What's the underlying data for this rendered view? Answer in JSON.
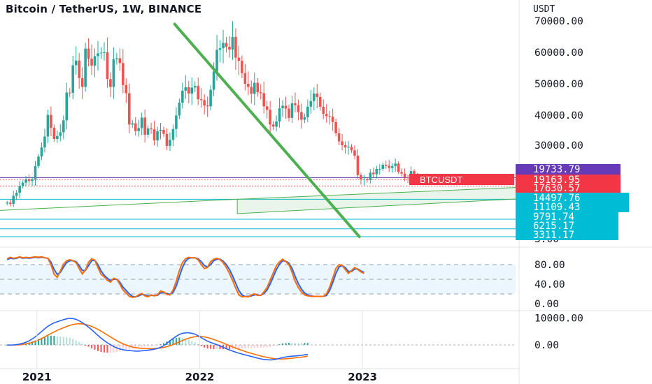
{
  "colors": {
    "up": "#26a69a",
    "down": "#ef5350",
    "trendline": "#4caf50",
    "channel": "#4caf50",
    "support": "#00bcd4",
    "resistance": "#673ab7",
    "stoch_k": "#2962ff",
    "stoch_d": "#ff6d00",
    "macd": "#2962ff",
    "signal": "#ff6d00",
    "text": "#131722",
    "axis_text": "#131722"
  },
  "chart_data": [
    {
      "type": "candlestick",
      "title": "Bitcoin / TetherUS, 1W, BINANCE",
      "ylabel": "USDT",
      "ylim": [
        3311,
        70000
      ],
      "grid": false,
      "y_ticks": [
        "70000.00",
        "60000.00",
        "50000.00",
        "40000.00",
        "30000.00",
        "3.00"
      ],
      "x_ticks": [
        "2021",
        "2022",
        "2023"
      ],
      "current_price": {
        "label": "BTCUSDT",
        "value": "19163.95"
      },
      "level_labels": [
        {
          "value": "19733.79",
          "kind": "resistance"
        },
        {
          "value": "17630.57",
          "kind": "price"
        },
        {
          "value": "14497.76",
          "kind": "support"
        },
        {
          "value": "11109.43",
          "kind": "support"
        },
        {
          "value": "9791.74",
          "kind": "support"
        },
        {
          "value": "6215.17",
          "kind": "support"
        },
        {
          "value": "3311.17",
          "kind": "support"
        }
      ],
      "trendline": {
        "from": {
          "date": "2021-11-08",
          "price": 69000
        },
        "to": {
          "date": "2022-12-26",
          "price": 3311
        }
      },
      "channel": {
        "start": "2022-03-28",
        "upper": [
          14497.76,
          17300
        ],
        "lower": [
          11109.43,
          14600
        ]
      },
      "x_range": [
        "2020-10-26",
        "2023-07-03"
      ],
      "closes": [
        13700,
        13400,
        15300,
        16000,
        17600,
        18400,
        19200,
        18800,
        19200,
        23400,
        26400,
        29300,
        32900,
        40100,
        35800,
        32100,
        33100,
        34300,
        38300,
        47200,
        47100,
        55900,
        57400,
        51800,
        49000,
        61200,
        58000,
        55800,
        58800,
        59700,
        59900,
        60000,
        51500,
        49000,
        57800,
        58100,
        56600,
        49600,
        47000,
        36900,
        37300,
        34700,
        35700,
        39200,
        33500,
        35600,
        35300,
        31600,
        34700,
        35100,
        33800,
        29800,
        31800,
        35400,
        39900,
        44000,
        47800,
        48900,
        46900,
        48800,
        49300,
        45100,
        44800,
        43100,
        42800,
        48100,
        53900,
        60800,
        61300,
        63000,
        61800,
        60900,
        64900,
        58300,
        57300,
        53400,
        50000,
        49000,
        46800,
        50300,
        47300,
        47000,
        42800,
        41700,
        36900,
        36200,
        37900,
        42200,
        43000,
        42100,
        39100,
        43800,
        43200,
        41000,
        38500,
        39300,
        42700,
        44500,
        46900,
        45800,
        42700,
        40400,
        39700,
        39500,
        37700,
        34000,
        31300,
        30000,
        29300,
        29500,
        28400,
        26700,
        20500,
        19200,
        19300,
        19000,
        21300,
        20800,
        22500,
        22500,
        23800,
        23500,
        22800,
        23400,
        24200,
        21500,
        21000,
        19800,
        19600,
        21800,
        20100,
        18900,
        19400,
        19700,
        19500,
        19200
      ]
    },
    {
      "type": "line",
      "title": "",
      "ylim": [
        0,
        100
      ],
      "y_ticks": [
        "80.00",
        "40.00",
        "0.00"
      ],
      "series": [
        {
          "name": "",
          "values": [
            92,
            95,
            93,
            94,
            96,
            94,
            95,
            94,
            95,
            96,
            95,
            96,
            94,
            93,
            80,
            60,
            54,
            67,
            81,
            88,
            90,
            88,
            84,
            72,
            61,
            69,
            85,
            92,
            89,
            74,
            60,
            55,
            48,
            44,
            52,
            50,
            40,
            28,
            22,
            15,
            13,
            14,
            18,
            21,
            16,
            14,
            18,
            16,
            18,
            26,
            24,
            19,
            18,
            28,
            46,
            68,
            84,
            92,
            95,
            94,
            94,
            90,
            80,
            72,
            74,
            86,
            91,
            93,
            90,
            84,
            74,
            62,
            48,
            32,
            18,
            14,
            15,
            14,
            18,
            20,
            17,
            17,
            24,
            33,
            48,
            63,
            78,
            86,
            91,
            86,
            80,
            64,
            46,
            33,
            24,
            18,
            16,
            15,
            15,
            15,
            15,
            15,
            20,
            34,
            52,
            72,
            80,
            78,
            70,
            62,
            68,
            74,
            70,
            65,
            62
          ]
        },
        {
          "name": "",
          "values": [
            90,
            93,
            92,
            93,
            95,
            93,
            94,
            93,
            94,
            95,
            94,
            95,
            94,
            93,
            85,
            70,
            60,
            64,
            75,
            84,
            88,
            88,
            86,
            78,
            68,
            68,
            78,
            88,
            89,
            80,
            67,
            58,
            52,
            47,
            50,
            50,
            44,
            34,
            27,
            20,
            15,
            14,
            16,
            19,
            18,
            16,
            17,
            17,
            17,
            22,
            23,
            21,
            19,
            23,
            36,
            56,
            74,
            87,
            93,
            94,
            94,
            92,
            86,
            78,
            75,
            80,
            88,
            91,
            91,
            87,
            80,
            70,
            57,
            42,
            27,
            18,
            15,
            15,
            16,
            18,
            18,
            17,
            21,
            28,
            40,
            55,
            70,
            81,
            88,
            87,
            83,
            72,
            56,
            41,
            30,
            22,
            18,
            16,
            15,
            15,
            15,
            15,
            17,
            27,
            43,
            62,
            75,
            78,
            74,
            66,
            66,
            71,
            71,
            67,
            64
          ]
        }
      ]
    },
    {
      "type": "line",
      "title": "",
      "y_ticks": [
        "10000.00",
        "0.00"
      ],
      "series": [
        {
          "name": "",
          "values": [
            -60,
            -40,
            10,
            100,
            300,
            600,
            1000,
            1500,
            2200,
            3000,
            4000,
            5000,
            6000,
            6900,
            7600,
            8200,
            8600,
            9000,
            9400,
            9700,
            9900,
            9800,
            9500,
            9000,
            8300,
            7500,
            6600,
            5600,
            4600,
            3500,
            2500,
            1600,
            800,
            100,
            -600,
            -1100,
            -1500,
            -1800,
            -2000,
            -2100,
            -2200,
            -2300,
            -2300,
            -2200,
            -2100,
            -2000,
            -1800,
            -1600,
            -1300,
            -900,
            -300,
            600,
            1500,
            2400,
            3200,
            3900,
            4300,
            4500,
            4500,
            4300,
            4000,
            3400,
            2700,
            2000,
            1400,
            900,
            500,
            100,
            -400,
            -900,
            -1400,
            -1900,
            -2300,
            -2700,
            -3100,
            -3400,
            -3700,
            -4000,
            -4300,
            -4600,
            -4900,
            -5200,
            -5400,
            -5500,
            -5600,
            -5500,
            -5300,
            -5000,
            -4700,
            -4500,
            -4300,
            -4200,
            -4100,
            -4000,
            -3900,
            -3700,
            -3500
          ]
        },
        {
          "name": "",
          "values": [
            -80,
            -70,
            -50,
            -10,
            60,
            180,
            360,
            610,
            930,
            1330,
            1810,
            2360,
            2960,
            3600,
            4240,
            4840,
            5400,
            5920,
            6400,
            6850,
            7260,
            7590,
            7800,
            7880,
            7820,
            7620,
            7300,
            6880,
            6370,
            5780,
            5120,
            4410,
            3690,
            2970,
            2260,
            1590,
            970,
            420,
            -60,
            -460,
            -780,
            -1020,
            -1190,
            -1300,
            -1370,
            -1400,
            -1400,
            -1360,
            -1280,
            -1140,
            -940,
            -660,
            -300,
            130,
            620,
            1140,
            1640,
            2100,
            2500,
            2820,
            3050,
            3140,
            3120,
            2980,
            2740,
            2410,
            2030,
            1610,
            1160,
            690,
            210,
            -270,
            -750,
            -1200,
            -1640,
            -2050,
            -2440,
            -2800,
            -3150,
            -3480,
            -3800,
            -4100,
            -4380,
            -4630,
            -4860,
            -5040,
            -5160,
            -5220,
            -5220,
            -5170,
            -5070,
            -4950,
            -4820,
            -4680,
            -4540,
            -4390,
            -4220
          ]
        }
      ]
    }
  ]
}
